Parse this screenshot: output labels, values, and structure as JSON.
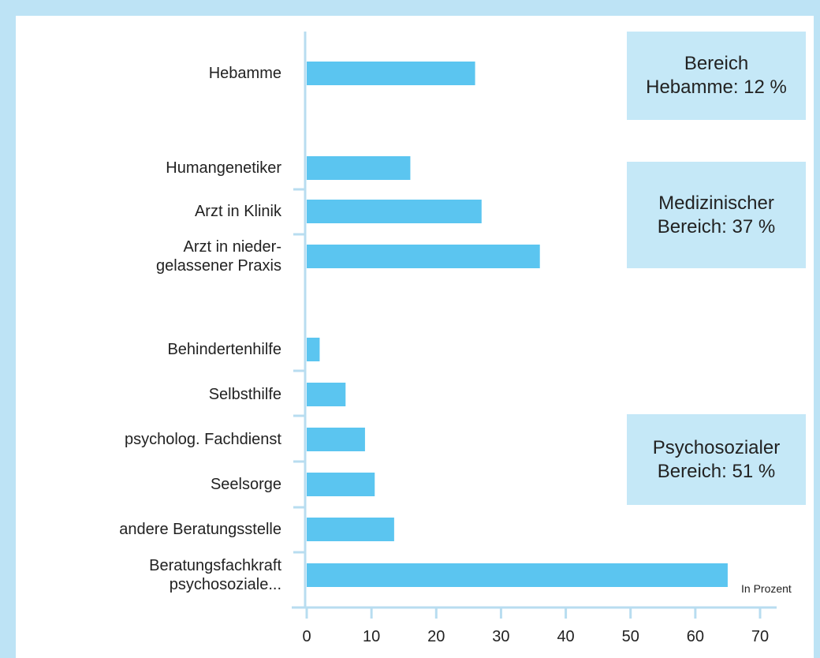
{
  "chart_data": {
    "type": "bar",
    "orientation": "horizontal",
    "categories": [
      "Hebamme",
      "Humangenetiker",
      "Arzt in Klinik",
      "Arzt in nieder-\ngelassener Praxis",
      "Behindertenhilfe",
      "Selbsthilfe",
      "psycholog. Fachdienst",
      "Seelsorge",
      "andere Beratungsstelle",
      "Beratungsfachkraft\npsychosoziale..."
    ],
    "values": [
      26,
      16,
      27,
      36,
      2,
      6,
      9,
      10.5,
      13.5,
      65
    ],
    "color": "#5bc5f0",
    "xlabel": "In Prozent",
    "xlim": [
      0,
      70
    ],
    "xticks": [
      0,
      10,
      20,
      30,
      40,
      50,
      60,
      70
    ],
    "annotations": [
      "Bereich\nHebamme: 12 %",
      "Medizinischer\nBereich: 37 %",
      "Psychosozialer\nBereich: 51 %"
    ]
  }
}
